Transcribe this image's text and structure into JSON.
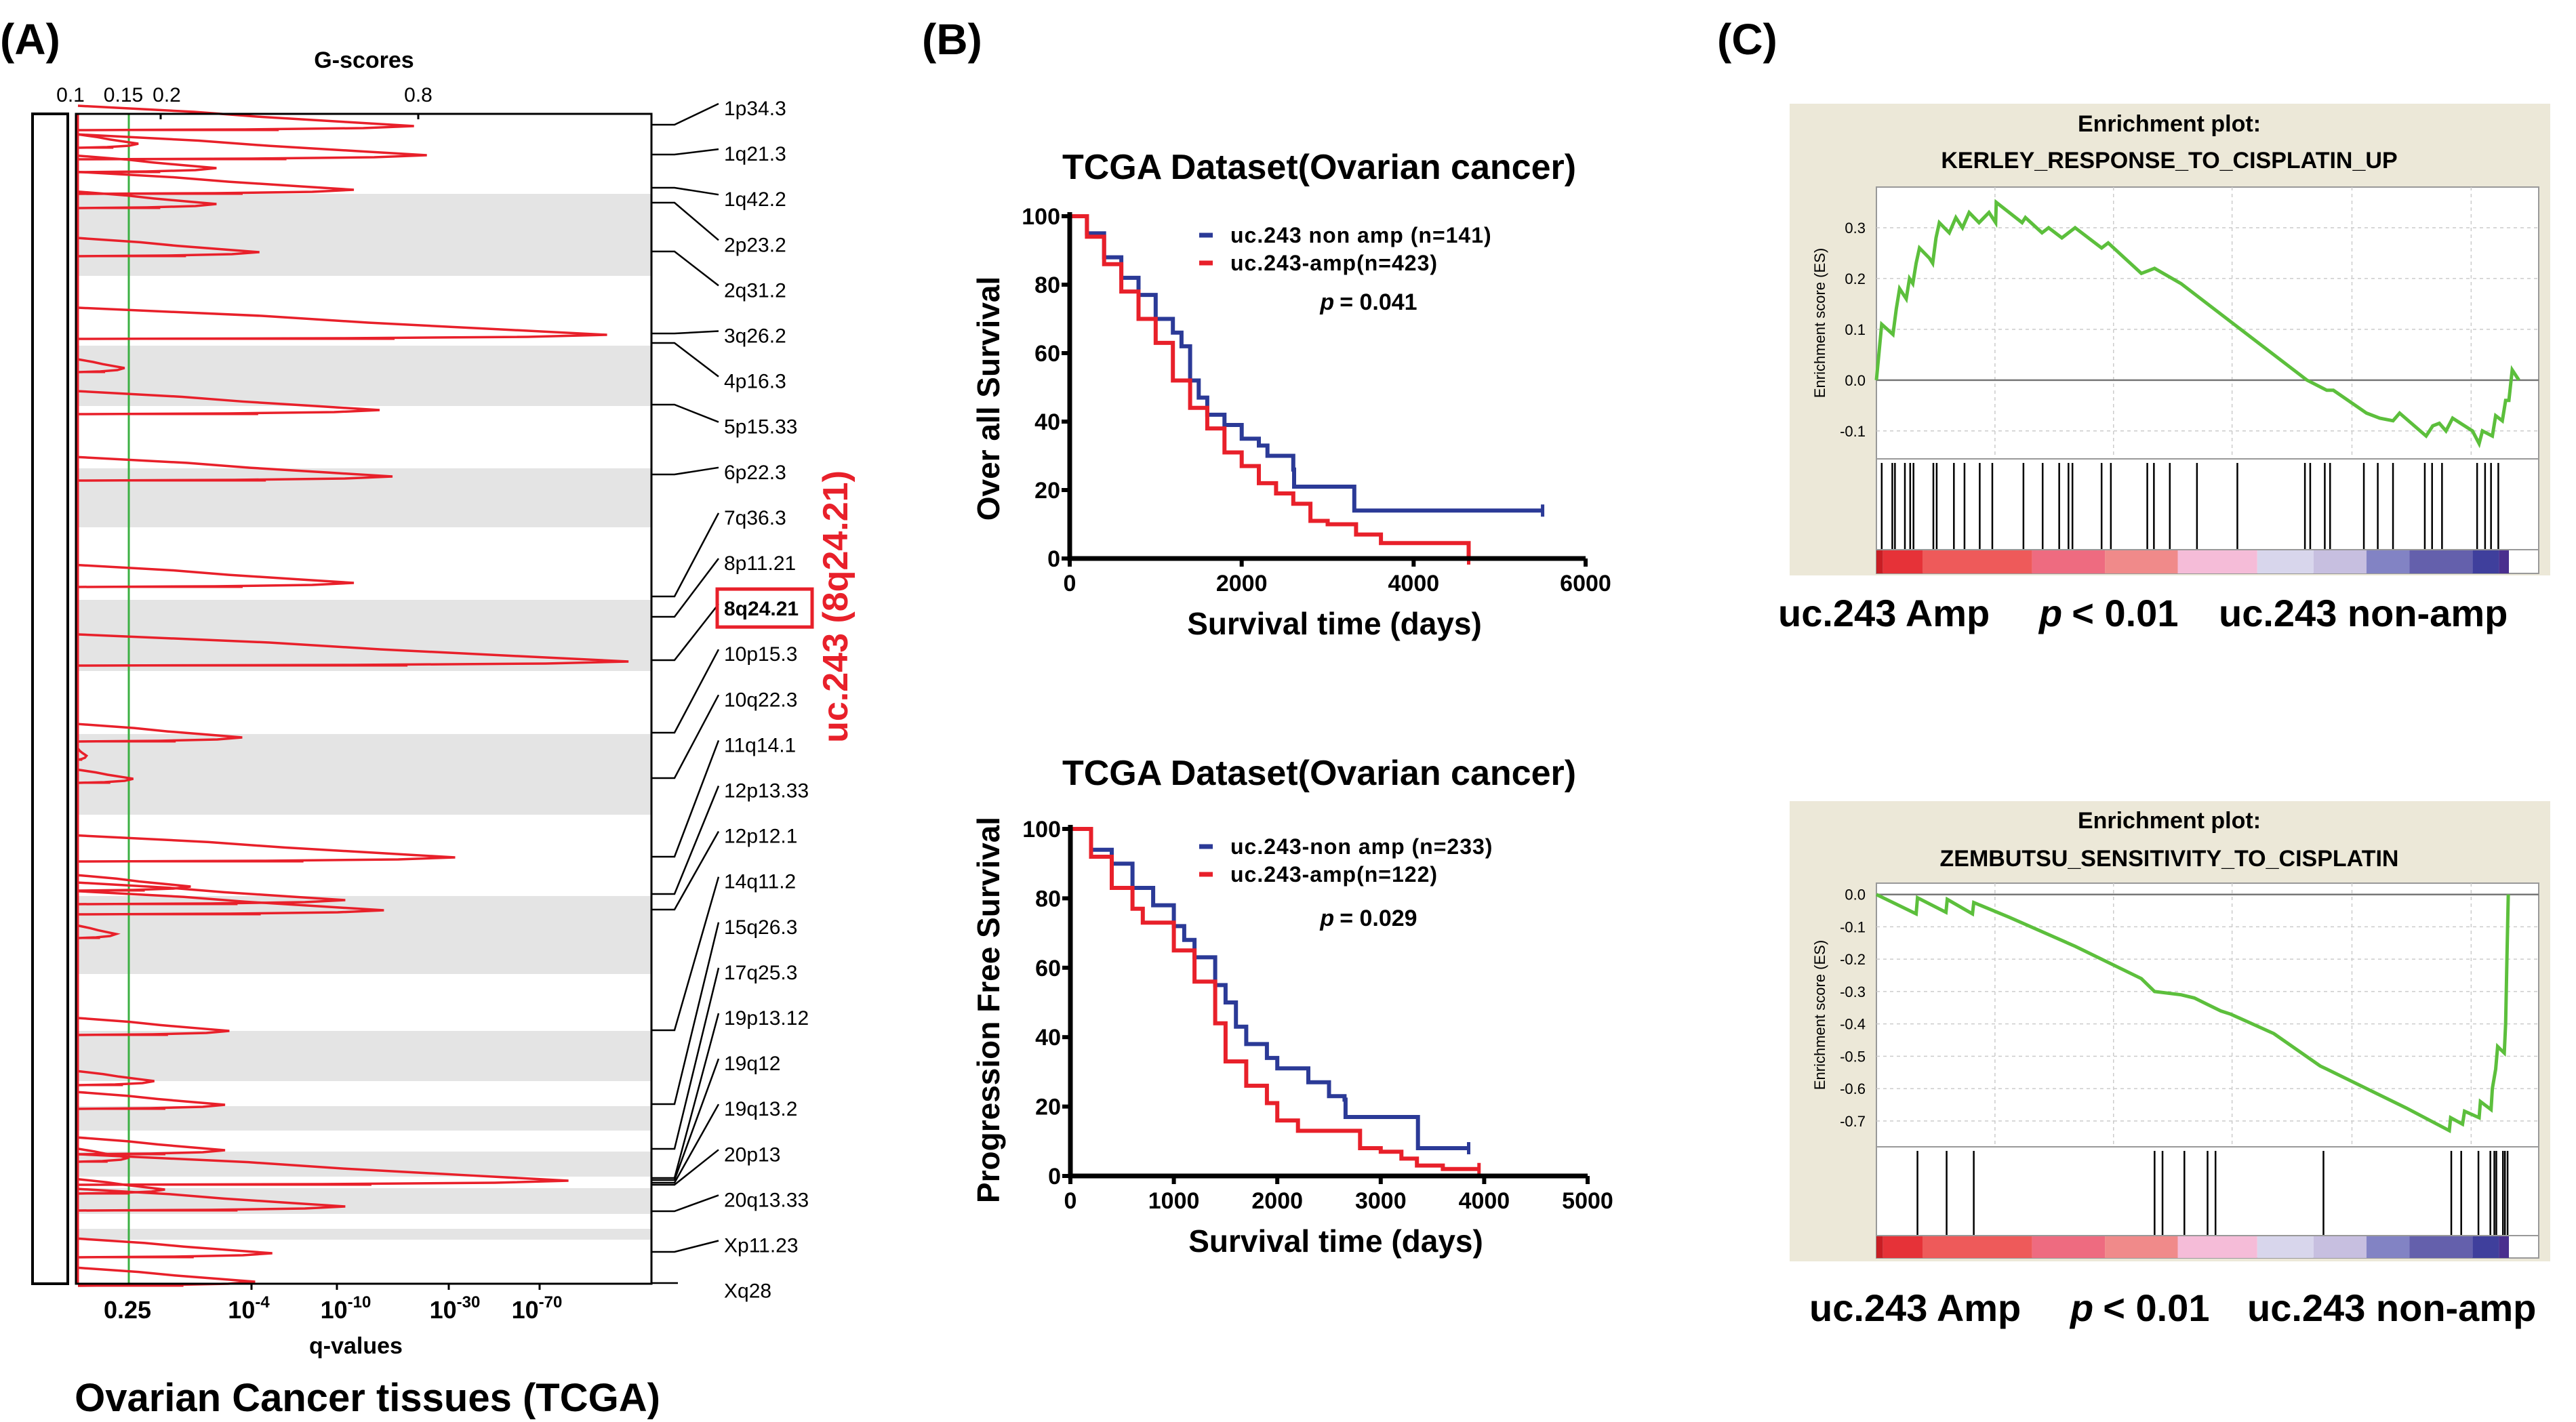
{
  "panel_labels": {
    "a": "(A)",
    "b": "(B)",
    "c": "(C)"
  },
  "colors": {
    "amp": "#e8202a",
    "non_amp": "#2b3a97",
    "threshold": "#3cb043",
    "es_curve": "#5cbf3c",
    "gsea_background": "#ece8d8",
    "band_shading": "#e4e4e4"
  },
  "chart_data": [
    {
      "type": "line",
      "panel": "A",
      "top_axis_label": "G-scores",
      "top_ticks": [
        "0.1",
        "0.15",
        "0.2",
        "0.8"
      ],
      "top_tick_values": [
        0.1,
        0.15,
        0.2,
        0.8
      ],
      "bottom_axis_label": "q-values",
      "bottom_ticks": [
        {
          "base": "0.25",
          "exp": ""
        },
        {
          "base": "10",
          "exp": "-4"
        },
        {
          "base": "10",
          "exp": "-10"
        },
        {
          "base": "10",
          "exp": "-30"
        },
        {
          "base": "10",
          "exp": "-70"
        }
      ],
      "threshold_q": 0.25,
      "caption": "Ovarian Cancer tissues (TCGA)",
      "bands": [
        "1p34.3",
        "1q21.3",
        "1q42.2",
        "2p23.2",
        "2q31.2",
        "3q26.2",
        "4p16.3",
        "5p15.33",
        "6p22.3",
        "7q36.3",
        "8p11.21",
        "8q24.21",
        "10p15.3",
        "10q22.3",
        "11q14.1",
        "12p13.33",
        "12p12.1",
        "14q11.2",
        "15q26.3",
        "17q25.3",
        "19p13.12",
        "19q12",
        "19q13.2",
        "20p13",
        "20q13.33",
        "Xp11.23",
        "Xq28"
      ],
      "highlight_band": "8q24.21",
      "highlight_annotation": "uc.243 (8q24.21)",
      "peaks": [
        {
          "band": "1p34.3",
          "g": 0.79
        },
        {
          "band": "1p34.3",
          "g": 0.165
        },
        {
          "band": "1q21.3",
          "g": 0.82
        },
        {
          "band": "1q21.3",
          "g": 0.33
        },
        {
          "band": "1q42.2",
          "g": 0.65
        },
        {
          "band": "2p23.2",
          "g": 0.33
        },
        {
          "band": "2q31.2",
          "g": 0.43
        },
        {
          "band": "3q26.2",
          "g": 1.24
        },
        {
          "band": "4p16.3",
          "g": 0.146
        },
        {
          "band": "5p15.33",
          "g": 0.71
        },
        {
          "band": "6p22.3",
          "g": 0.74
        },
        {
          "band": "7q36.3",
          "g": 0.65
        },
        {
          "band": "8q24.21",
          "g": 1.29
        },
        {
          "band": "10p15.3",
          "g": 0.39
        },
        {
          "band": "10q22.3",
          "g": 0.11
        },
        {
          "band": "10q22.3",
          "g": 0.157
        },
        {
          "band": "11q14.1",
          "g": 0.886
        },
        {
          "band": "12p13.33",
          "g": 0.27
        },
        {
          "band": "12p13.33",
          "g": 0.63
        },
        {
          "band": "12p12.1",
          "g": 0.72
        },
        {
          "band": "12p12.1",
          "g": 0.138
        },
        {
          "band": "14q11.2",
          "g": 0.36
        },
        {
          "band": "14q11.2",
          "g": 0.19
        },
        {
          "band": "15q26.3",
          "g": 0.35
        },
        {
          "band": "17q25.3",
          "g": 0.35
        },
        {
          "band": "17q25.3",
          "g": 0.15
        },
        {
          "band": "19q13.2",
          "g": 1.15
        },
        {
          "band": "20p13",
          "g": 0.21
        },
        {
          "band": "20q13.33",
          "g": 0.63
        },
        {
          "band": "Xp11.23",
          "g": 0.46
        },
        {
          "band": "Xq28",
          "g": 0.42
        }
      ]
    },
    {
      "type": "line",
      "panel": "B-top",
      "title": "TCGA Dataset(Ovarian cancer)",
      "xlabel": "Survival time (days)",
      "ylabel": "Over all Survival",
      "xlim": [
        0,
        6000
      ],
      "ylim": [
        0,
        100
      ],
      "xticks": [
        "0",
        "2000",
        "4000",
        "6000"
      ],
      "yticks": [
        "0",
        "20",
        "40",
        "60",
        "80",
        "100"
      ],
      "p_symbol": "p",
      "p_text": "= 0.041",
      "series": [
        {
          "name": "uc.243 non amp (n=141)",
          "color_key": "non_amp",
          "x": [
            0,
            200,
            400,
            600,
            800,
            1000,
            1200,
            1300,
            1400,
            1500,
            1600,
            1800,
            2000,
            2200,
            2300,
            2600,
            2610,
            3300,
            3310,
            5500
          ],
          "y": [
            100,
            95,
            88,
            82,
            77,
            70,
            66,
            62,
            52,
            47,
            42,
            39,
            35,
            33,
            30,
            26,
            21,
            21,
            14,
            14
          ]
        },
        {
          "name": "uc.243-amp(n=423)",
          "color_key": "amp",
          "x": [
            0,
            200,
            400,
            600,
            800,
            1000,
            1200,
            1400,
            1600,
            1800,
            2000,
            2200,
            2400,
            2600,
            2800,
            3000,
            3300,
            3330,
            3600,
            3620,
            4630,
            4640
          ],
          "y": [
            100,
            94,
            86,
            78,
            70,
            63,
            52,
            44,
            38,
            31,
            27,
            22,
            19,
            16,
            11,
            10,
            10,
            7,
            7,
            4.5,
            4.5,
            0
          ]
        }
      ]
    },
    {
      "type": "line",
      "panel": "B-bottom",
      "title": "TCGA Dataset(Ovarian cancer)",
      "xlabel": "Survival time (days)",
      "ylabel": "Progression Free Survival",
      "xlim": [
        0,
        5000
      ],
      "ylim": [
        0,
        100
      ],
      "xticks": [
        "0",
        "1000",
        "2000",
        "3000",
        "4000",
        "5000"
      ],
      "yticks": [
        "0",
        "20",
        "40",
        "60",
        "80",
        "100"
      ],
      "p_symbol": "p",
      "p_text": "= 0.029",
      "series": [
        {
          "name": "uc.243-non amp (n=233)",
          "color_key": "non_amp",
          "x": [
            0,
            200,
            400,
            600,
            800,
            1000,
            1100,
            1200,
            1300,
            1400,
            1500,
            1600,
            1700,
            1900,
            2000,
            2300,
            2500,
            2650,
            2660,
            3350,
            3360,
            3850
          ],
          "y": [
            100,
            94,
            90,
            83,
            78,
            72,
            68,
            63,
            63,
            55,
            50,
            43,
            38,
            34,
            31,
            27,
            23,
            22,
            17,
            17,
            8,
            8
          ]
        },
        {
          "name": "uc.243-amp(n=122)",
          "color_key": "amp",
          "x": [
            0,
            200,
            400,
            600,
            700,
            800,
            1000,
            1200,
            1400,
            1500,
            1700,
            1900,
            2000,
            2200,
            2600,
            2800,
            3000,
            3200,
            3350,
            3600,
            3950
          ],
          "y": [
            100,
            92,
            83,
            77,
            73,
            73,
            65,
            56,
            44,
            33,
            26,
            21,
            16,
            13,
            13,
            8,
            7,
            5,
            3,
            2,
            2
          ]
        }
      ]
    },
    {
      "type": "line",
      "panel": "C-top",
      "title_line1": "Enrichment plot:",
      "title_line2": "KERLEY_RESPONSE_TO_CISPLATIN_UP",
      "ylabel": "Enrichment score (ES)",
      "yticks": [
        "0.3",
        "0.2",
        "0.1",
        "0.0",
        "-0.1"
      ],
      "ytick_values": [
        0.3,
        0.2,
        0.1,
        0.0,
        -0.1
      ],
      "ylim": [
        -0.155,
        0.38
      ],
      "xlim": [
        0,
        100
      ],
      "es_x": [
        0,
        0.8,
        2.5,
        3,
        3.5,
        4.5,
        5,
        5.5,
        6,
        6.5,
        8,
        8.5,
        9,
        9.5,
        11,
        12,
        13,
        14,
        15.5,
        17,
        18,
        18.1,
        22,
        22.5,
        25,
        26,
        28,
        29,
        30,
        34,
        35,
        40,
        42,
        46,
        55,
        65,
        68,
        69,
        74,
        76,
        78,
        79,
        83,
        84,
        85,
        86,
        87,
        90,
        91,
        91.5,
        93,
        93.5,
        94.5,
        95,
        95.5,
        96,
        96.5,
        97
      ],
      "es_y": [
        0,
        0.11,
        0.09,
        0.14,
        0.18,
        0.16,
        0.2,
        0.19,
        0.23,
        0.26,
        0.24,
        0.23,
        0.28,
        0.31,
        0.29,
        0.32,
        0.3,
        0.33,
        0.31,
        0.33,
        0.31,
        0.35,
        0.31,
        0.32,
        0.29,
        0.3,
        0.28,
        0.29,
        0.3,
        0.26,
        0.27,
        0.21,
        0.22,
        0.19,
        0.1,
        0.0,
        -0.02,
        -0.02,
        -0.065,
        -0.075,
        -0.08,
        -0.065,
        -0.11,
        -0.09,
        -0.085,
        -0.1,
        -0.075,
        -0.1,
        -0.125,
        -0.1,
        -0.11,
        -0.07,
        -0.08,
        -0.04,
        -0.04,
        0.02,
        0.01,
        0.0
      ],
      "hits": [
        0.8,
        2.4,
        2.8,
        4.3,
        5.1,
        5.6,
        8.6,
        9.1,
        11.7,
        13.3,
        15.6,
        17.5,
        22.2,
        25.1,
        27.6,
        29.0,
        29.6,
        34.0,
        35.4,
        40.9,
        41.9,
        44.3,
        48.4,
        54.5,
        64.7,
        65.5,
        67.7,
        68.5,
        73.6,
        75.7,
        78.0,
        82.8,
        83.9,
        85.4,
        90.7,
        91.9,
        92.8,
        93.9
      ],
      "left_label": "uc.243 Amp",
      "p_symbol": "p",
      "p_text": "< 0.01",
      "right_label": "uc.243 non-amp"
    },
    {
      "type": "line",
      "panel": "C-bottom",
      "title_line1": "Enrichment plot:",
      "title_line2": "ZEMBUTSU_SENSITIVITY_TO_CISPLATIN",
      "ylabel": "Enrichment score (ES)",
      "yticks": [
        "0.0",
        "-0.1",
        "-0.2",
        "-0.3",
        "-0.4",
        "-0.5",
        "-0.6",
        "-0.7"
      ],
      "ytick_values": [
        0.0,
        -0.1,
        -0.2,
        -0.3,
        -0.4,
        -0.5,
        -0.6,
        -0.7
      ],
      "ylim": [
        -0.78,
        0.035
      ],
      "xlim": [
        0,
        100
      ],
      "es_x": [
        0,
        6,
        6.2,
        10.5,
        10.7,
        14.5,
        14.7,
        20,
        30,
        40,
        42,
        46,
        48,
        50,
        52,
        53.5,
        60,
        67,
        68,
        80,
        86.5,
        86.7,
        88.5,
        88.8,
        91,
        91.2,
        92.8,
        93,
        93.5,
        93.8,
        94.8,
        95,
        95.2,
        95.3,
        95.4
      ],
      "es_y": [
        0,
        -0.06,
        -0.01,
        -0.055,
        -0.015,
        -0.06,
        -0.025,
        -0.07,
        -0.16,
        -0.26,
        -0.3,
        -0.31,
        -0.32,
        -0.34,
        -0.36,
        -0.37,
        -0.43,
        -0.53,
        -0.54,
        -0.66,
        -0.73,
        -0.69,
        -0.71,
        -0.67,
        -0.69,
        -0.64,
        -0.665,
        -0.6,
        -0.54,
        -0.47,
        -0.49,
        -0.4,
        -0.2,
        -0.1,
        0.0
      ],
      "hits": [
        6.2,
        10.6,
        14.7,
        42.0,
        43.2,
        46.5,
        50.0,
        51.2,
        67.5,
        86.8,
        88.3,
        90.9,
        92.7,
        93.3,
        93.6,
        94.6,
        94.9,
        95.3
      ],
      "left_label": "uc.243 Amp",
      "p_symbol": "p",
      "p_text": "< 0.01",
      "right_label": "uc.243 non-amp"
    }
  ]
}
